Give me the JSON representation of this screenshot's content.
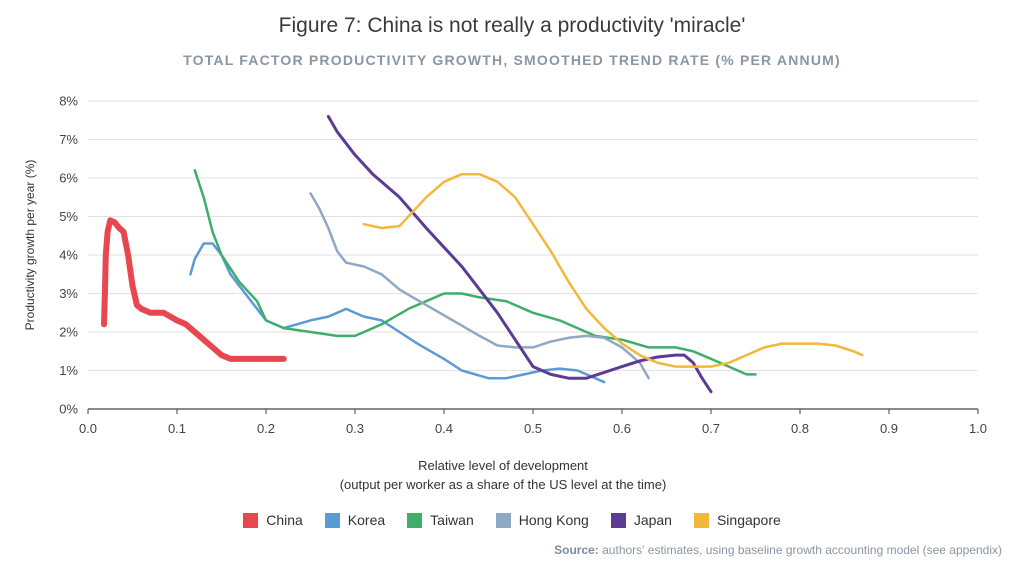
{
  "chart_data": {
    "type": "line",
    "title": "Figure 7: China is not really a productivity 'miracle'",
    "subtitle": "TOTAL FACTOR PRODUCTIVITY GROWTH, SMOOTHED TREND RATE (% PER ANNUM)",
    "ylabel": "Productivity growth per year (%)",
    "xlabel_line1": "Relative level of development",
    "xlabel_line2": "(output per worker as a share of the US level at the time)",
    "xlim": [
      0.0,
      1.0
    ],
    "ylim": [
      0,
      8
    ],
    "xticks": [
      "0.0",
      "0.1",
      "0.2",
      "0.3",
      "0.4",
      "0.5",
      "0.6",
      "0.7",
      "0.8",
      "0.9",
      "1.0"
    ],
    "yticks": [
      "0%",
      "1%",
      "2%",
      "3%",
      "4%",
      "5%",
      "6%",
      "7%",
      "8%"
    ],
    "grid": "horizontal",
    "legend_position": "bottom",
    "series": [
      {
        "name": "China",
        "color": "#e8474f",
        "width": 6,
        "points": [
          [
            0.018,
            2.2
          ],
          [
            0.019,
            3.0
          ],
          [
            0.02,
            4.0
          ],
          [
            0.022,
            4.6
          ],
          [
            0.025,
            4.9
          ],
          [
            0.03,
            4.85
          ],
          [
            0.035,
            4.7
          ],
          [
            0.04,
            4.6
          ],
          [
            0.045,
            4.0
          ],
          [
            0.05,
            3.2
          ],
          [
            0.055,
            2.7
          ],
          [
            0.06,
            2.6
          ],
          [
            0.07,
            2.5
          ],
          [
            0.085,
            2.5
          ],
          [
            0.1,
            2.3
          ],
          [
            0.11,
            2.2
          ],
          [
            0.12,
            2.0
          ],
          [
            0.13,
            1.8
          ],
          [
            0.14,
            1.6
          ],
          [
            0.15,
            1.4
          ],
          [
            0.16,
            1.3
          ],
          [
            0.18,
            1.3
          ],
          [
            0.2,
            1.3
          ],
          [
            0.22,
            1.3
          ]
        ]
      },
      {
        "name": "Korea",
        "color": "#5b9bd5",
        "width": 2.5,
        "points": [
          [
            0.115,
            3.5
          ],
          [
            0.12,
            3.9
          ],
          [
            0.13,
            4.3
          ],
          [
            0.14,
            4.3
          ],
          [
            0.15,
            4.0
          ],
          [
            0.16,
            3.5
          ],
          [
            0.18,
            2.9
          ],
          [
            0.2,
            2.3
          ],
          [
            0.22,
            2.1
          ],
          [
            0.25,
            2.3
          ],
          [
            0.27,
            2.4
          ],
          [
            0.28,
            2.5
          ],
          [
            0.29,
            2.6
          ],
          [
            0.31,
            2.4
          ],
          [
            0.33,
            2.3
          ],
          [
            0.35,
            2.0
          ],
          [
            0.37,
            1.7
          ],
          [
            0.4,
            1.3
          ],
          [
            0.42,
            1.0
          ],
          [
            0.45,
            0.8
          ],
          [
            0.47,
            0.8
          ],
          [
            0.49,
            0.9
          ],
          [
            0.51,
            1.0
          ],
          [
            0.53,
            1.05
          ],
          [
            0.55,
            1.0
          ],
          [
            0.57,
            0.8
          ],
          [
            0.58,
            0.7
          ]
        ]
      },
      {
        "name": "Taiwan",
        "color": "#3fae6a",
        "width": 2.5,
        "points": [
          [
            0.12,
            6.2
          ],
          [
            0.13,
            5.5
          ],
          [
            0.14,
            4.6
          ],
          [
            0.15,
            4.0
          ],
          [
            0.17,
            3.3
          ],
          [
            0.19,
            2.8
          ],
          [
            0.2,
            2.3
          ],
          [
            0.22,
            2.1
          ],
          [
            0.25,
            2.0
          ],
          [
            0.28,
            1.9
          ],
          [
            0.3,
            1.9
          ],
          [
            0.33,
            2.2
          ],
          [
            0.36,
            2.6
          ],
          [
            0.38,
            2.8
          ],
          [
            0.4,
            3.0
          ],
          [
            0.42,
            3.0
          ],
          [
            0.44,
            2.9
          ],
          [
            0.47,
            2.8
          ],
          [
            0.5,
            2.5
          ],
          [
            0.53,
            2.3
          ],
          [
            0.55,
            2.1
          ],
          [
            0.57,
            1.9
          ],
          [
            0.6,
            1.8
          ],
          [
            0.63,
            1.6
          ],
          [
            0.66,
            1.6
          ],
          [
            0.68,
            1.5
          ],
          [
            0.7,
            1.3
          ],
          [
            0.72,
            1.1
          ],
          [
            0.74,
            0.9
          ],
          [
            0.75,
            0.9
          ]
        ]
      },
      {
        "name": "Hong Kong",
        "color": "#8fa8c4",
        "width": 2.5,
        "points": [
          [
            0.25,
            5.6
          ],
          [
            0.26,
            5.2
          ],
          [
            0.27,
            4.7
          ],
          [
            0.28,
            4.1
          ],
          [
            0.29,
            3.8
          ],
          [
            0.31,
            3.7
          ],
          [
            0.33,
            3.5
          ],
          [
            0.35,
            3.1
          ],
          [
            0.38,
            2.7
          ],
          [
            0.41,
            2.3
          ],
          [
            0.44,
            1.9
          ],
          [
            0.46,
            1.65
          ],
          [
            0.48,
            1.6
          ],
          [
            0.5,
            1.6
          ],
          [
            0.52,
            1.75
          ],
          [
            0.54,
            1.85
          ],
          [
            0.56,
            1.9
          ],
          [
            0.58,
            1.85
          ],
          [
            0.6,
            1.6
          ],
          [
            0.62,
            1.2
          ],
          [
            0.63,
            0.8
          ]
        ]
      },
      {
        "name": "Japan",
        "color": "#5b3b93",
        "width": 3,
        "points": [
          [
            0.27,
            7.6
          ],
          [
            0.28,
            7.2
          ],
          [
            0.3,
            6.6
          ],
          [
            0.32,
            6.1
          ],
          [
            0.35,
            5.5
          ],
          [
            0.38,
            4.7
          ],
          [
            0.4,
            4.2
          ],
          [
            0.42,
            3.7
          ],
          [
            0.44,
            3.1
          ],
          [
            0.46,
            2.5
          ],
          [
            0.48,
            1.8
          ],
          [
            0.5,
            1.1
          ],
          [
            0.52,
            0.9
          ],
          [
            0.54,
            0.8
          ],
          [
            0.56,
            0.8
          ],
          [
            0.58,
            0.95
          ],
          [
            0.6,
            1.1
          ],
          [
            0.62,
            1.25
          ],
          [
            0.64,
            1.35
          ],
          [
            0.66,
            1.4
          ],
          [
            0.67,
            1.4
          ],
          [
            0.68,
            1.2
          ],
          [
            0.69,
            0.8
          ],
          [
            0.7,
            0.45
          ]
        ]
      },
      {
        "name": "Singapore",
        "color": "#f2b83a",
        "width": 2.5,
        "points": [
          [
            0.31,
            4.8
          ],
          [
            0.33,
            4.7
          ],
          [
            0.35,
            4.75
          ],
          [
            0.36,
            5.0
          ],
          [
            0.38,
            5.5
          ],
          [
            0.4,
            5.9
          ],
          [
            0.42,
            6.1
          ],
          [
            0.44,
            6.1
          ],
          [
            0.46,
            5.9
          ],
          [
            0.48,
            5.5
          ],
          [
            0.5,
            4.8
          ],
          [
            0.52,
            4.1
          ],
          [
            0.54,
            3.3
          ],
          [
            0.56,
            2.6
          ],
          [
            0.58,
            2.1
          ],
          [
            0.6,
            1.7
          ],
          [
            0.62,
            1.4
          ],
          [
            0.64,
            1.2
          ],
          [
            0.66,
            1.1
          ],
          [
            0.68,
            1.1
          ],
          [
            0.7,
            1.1
          ],
          [
            0.72,
            1.2
          ],
          [
            0.74,
            1.4
          ],
          [
            0.76,
            1.6
          ],
          [
            0.78,
            1.7
          ],
          [
            0.8,
            1.7
          ],
          [
            0.82,
            1.7
          ],
          [
            0.84,
            1.65
          ],
          [
            0.86,
            1.5
          ],
          [
            0.87,
            1.4
          ]
        ]
      }
    ]
  },
  "source_label": "Source:",
  "source_text": " authors' estimates, using baseline growth accounting model (see appendix)"
}
